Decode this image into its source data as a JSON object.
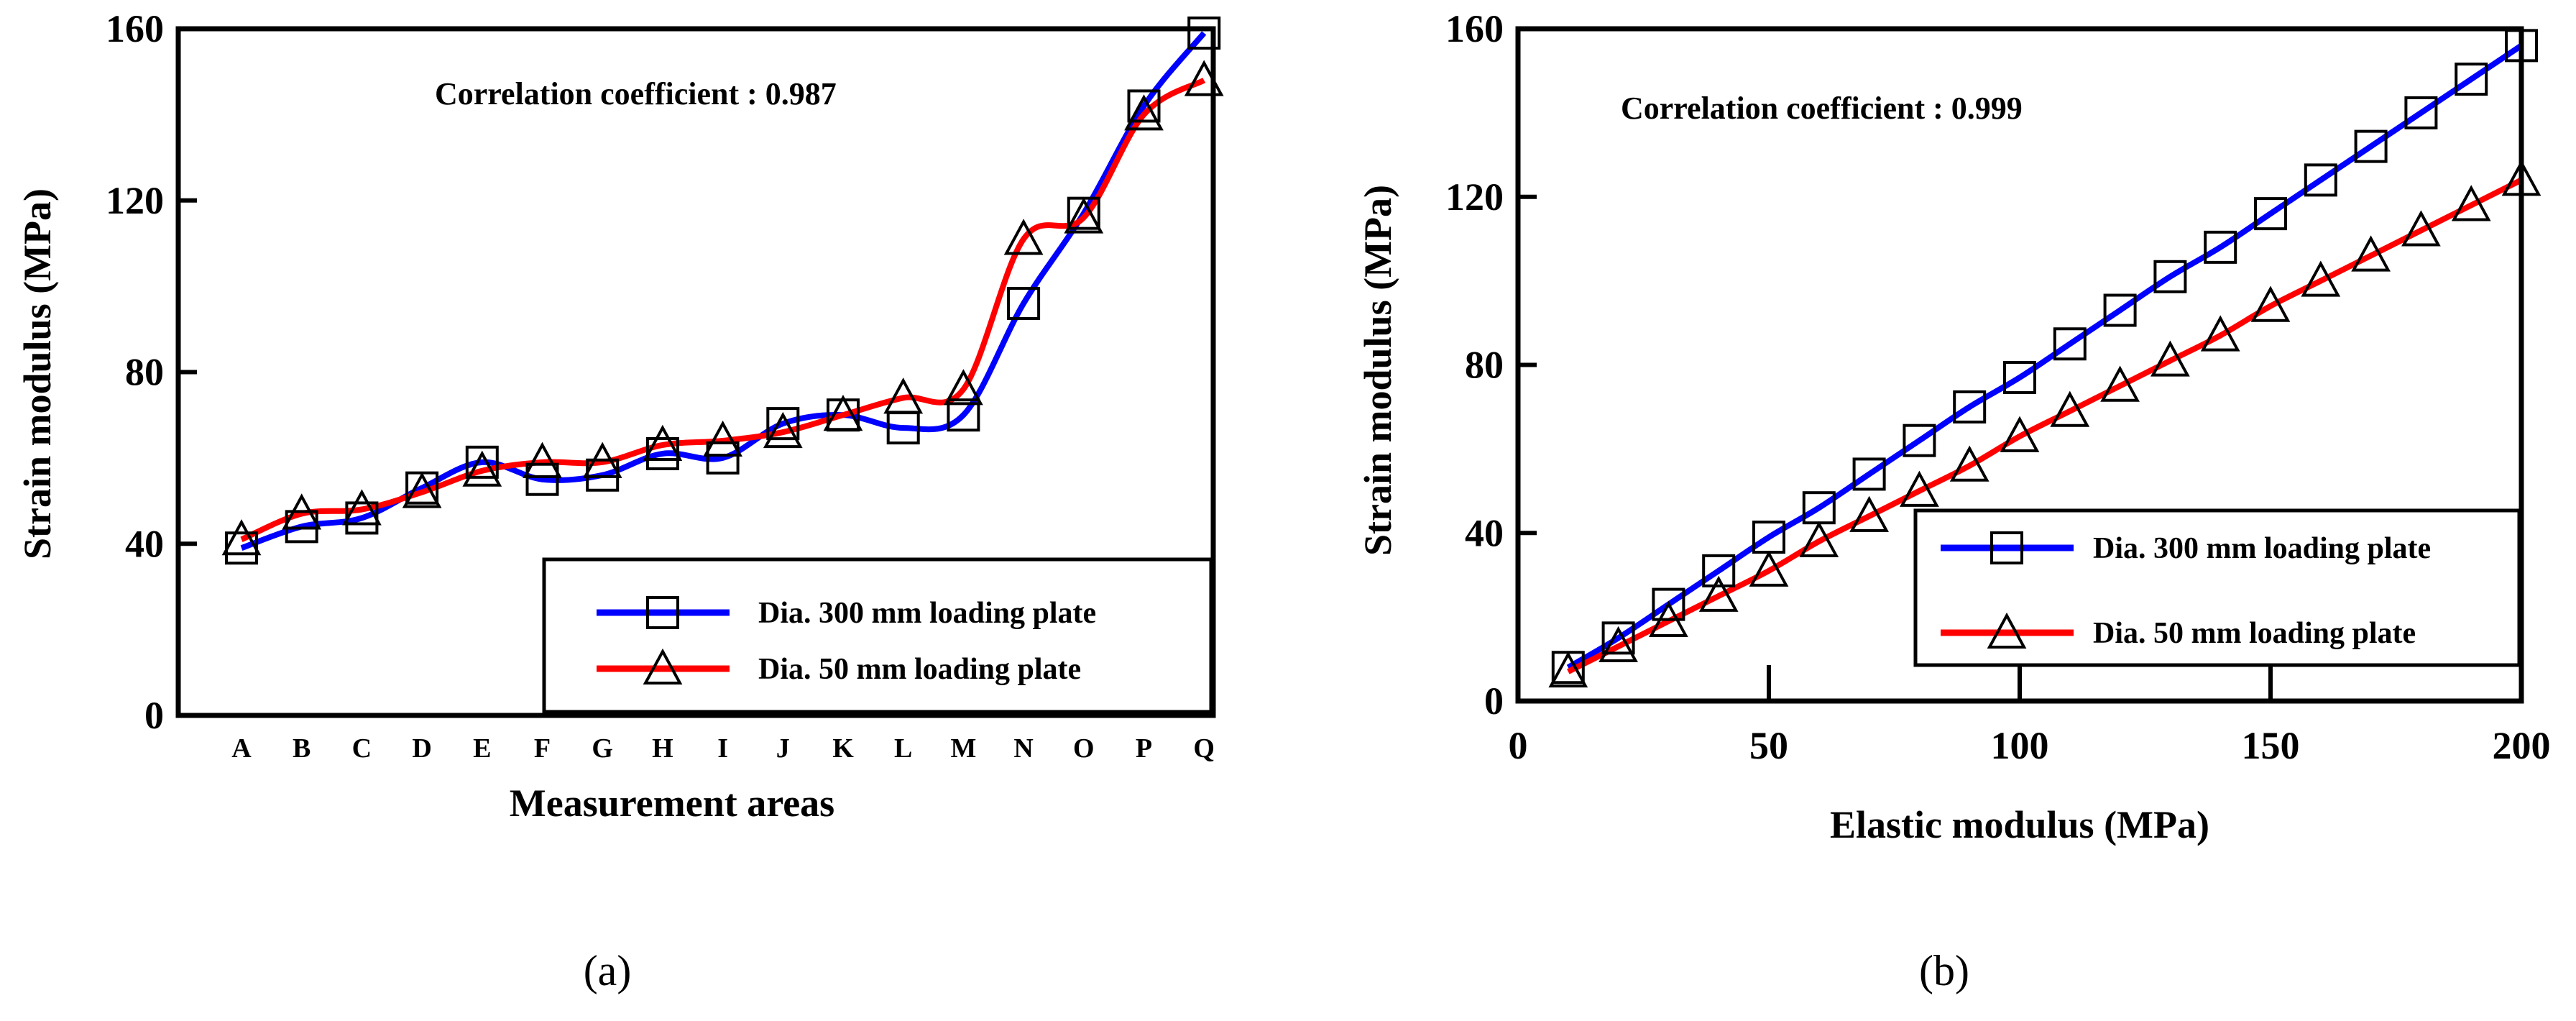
{
  "chart_data": [
    {
      "panel_label": "(a)",
      "type": "line",
      "xlabel": "Measurement areas",
      "ylabel": "Strain modulus (MPa)",
      "categories": [
        "A",
        "B",
        "C",
        "D",
        "E",
        "F",
        "G",
        "H",
        "I",
        "J",
        "K",
        "L",
        "M",
        "N",
        "O",
        "P",
        "Q"
      ],
      "ylim": [
        0,
        160
      ],
      "yticks": [
        0,
        40,
        80,
        120,
        160
      ],
      "annotation": "Correlation coefficient : 0.987",
      "legend_position": "bottom-right",
      "series": [
        {
          "name": "Dia. 300 mm loading plate",
          "color": "#0000ff",
          "marker": "square",
          "values": [
            39,
            44,
            46,
            53,
            59,
            55,
            56,
            61,
            60,
            68,
            70,
            67,
            70,
            96,
            117,
            142,
            159
          ]
        },
        {
          "name": "Dia. 50 mm loading plate",
          "color": "#ff0000",
          "marker": "triangle",
          "values": [
            41,
            47,
            48,
            52,
            57,
            59,
            59,
            63,
            64,
            66,
            70,
            74,
            76,
            111,
            116,
            140,
            148
          ]
        }
      ]
    },
    {
      "panel_label": "(b)",
      "type": "line",
      "xlabel": "Elastic modulus (MPa)",
      "ylabel": "Strain modulus (MPa)",
      "xlim": [
        0,
        200
      ],
      "xticks": [
        0,
        50,
        100,
        150,
        200
      ],
      "ylim": [
        0,
        160
      ],
      "yticks": [
        0,
        40,
        80,
        120,
        160
      ],
      "annotation": "Correlation coefficient : 0.999",
      "legend_position": "bottom-right",
      "x": [
        10,
        20,
        30,
        40,
        50,
        60,
        70,
        80,
        90,
        100,
        110,
        120,
        130,
        140,
        150,
        160,
        170,
        180,
        190,
        200
      ],
      "series": [
        {
          "name": "Dia. 300 mm loading plate",
          "color": "#0000ff",
          "marker": "square",
          "values": [
            8,
            15,
            23,
            31,
            39,
            46,
            54,
            62,
            70,
            77,
            85,
            93,
            101,
            108,
            116,
            124,
            132,
            140,
            148,
            156
          ]
        },
        {
          "name": "Dia. 50 mm loading plate",
          "color": "#ff0000",
          "marker": "triangle",
          "values": [
            7,
            13,
            19,
            25,
            31,
            38,
            44,
            50,
            56,
            63,
            69,
            75,
            81,
            87,
            94,
            100,
            106,
            112,
            118,
            124
          ]
        }
      ]
    }
  ]
}
